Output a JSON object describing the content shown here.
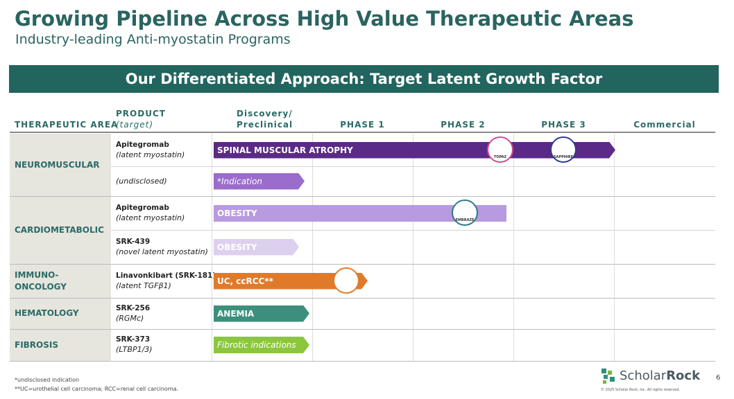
{
  "header": {
    "title": "Growing Pipeline Across High Value Therapeutic Areas",
    "subtitle": "Industry-leading Anti-myostatin Programs"
  },
  "banner": "Our Differentiated Approach: Target Latent Growth Factor",
  "table": {
    "columns": {
      "area": "THERAPEUTIC AREA",
      "product": "PRODUCT",
      "target": "(target)",
      "stages": [
        "Discovery/\nPreclinical",
        "PHASE 1",
        "PHASE 2",
        "PHASE 3",
        "Commercial"
      ]
    },
    "areas": [
      {
        "name": "NEUROMUSCULAR",
        "programs": [
          {
            "product": "Apitegromab",
            "target": "(latent myostatin)",
            "indication": "SPINAL MUSCULAR ATROPHY",
            "trials": [
              "TOPAZ",
              "SAPPHIRE"
            ]
          },
          {
            "product": "(undisclosed)",
            "indication": "*Indication"
          }
        ]
      },
      {
        "name": "CARDIOMETABOLIC",
        "programs": [
          {
            "product": "Apitegromab",
            "target": "(latent myostatin)",
            "indication": "OBESITY",
            "trials": [
              "EMBRAZE"
            ]
          },
          {
            "product": "SRK-439",
            "target": "(novel latent myostatin)",
            "indication": "OBESITY"
          }
        ]
      },
      {
        "name": "IMMUNO-\nONCOLOGY",
        "programs": [
          {
            "product": "Linavonkibart (SRK-181)",
            "target": "(latent TGFβ1)",
            "indication": "UC, ccRCC**"
          }
        ]
      },
      {
        "name": "HEMATOLOGY",
        "programs": [
          {
            "product": "SRK-256",
            "target": "(RGMc)",
            "indication": "ANEMIA"
          }
        ]
      },
      {
        "name": "FIBROSIS",
        "programs": [
          {
            "product": "SRK-373",
            "target": "(LTBP1/3)",
            "indication": "Fibrotic indications"
          }
        ]
      }
    ]
  },
  "footnotes": [
    "*undisclosed indication",
    "**UC=urothelial cell carcinoma; RCC=renal cell carcinoma."
  ],
  "logo": [
    "Scholar",
    "Rock"
  ],
  "copyright": "© 2025 Scholar Rock, Inc. All rights reserved.",
  "page_number": 6
}
